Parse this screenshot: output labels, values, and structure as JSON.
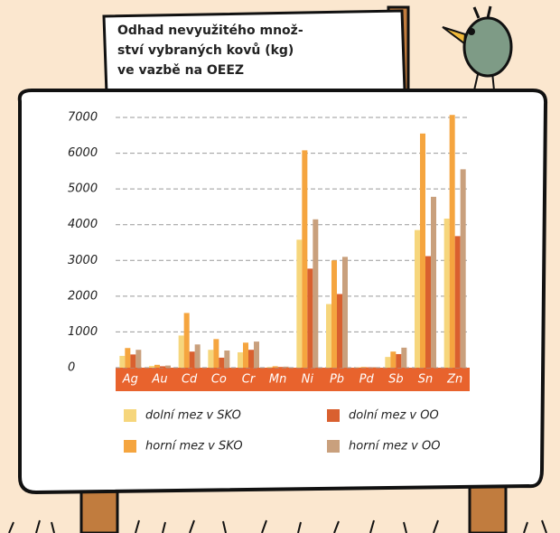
{
  "chart_data": {
    "type": "bar",
    "title": [
      "Odhad nevyužitého množ-",
      "ství vybraných kovů (kg)",
      "ve vazbě na OEEZ"
    ],
    "categories": [
      "Ag",
      "Au",
      "Cd",
      "Co",
      "Cr",
      "Mn",
      "Ni",
      "Pb",
      "Pd",
      "Sb",
      "Sn",
      "Zn"
    ],
    "series": [
      {
        "name": "dolní mez v SKO",
        "color": "#f6d67c",
        "values": [
          330,
          50,
          900,
          500,
          430,
          20,
          3580,
          1780,
          10,
          300,
          3850,
          4170
        ]
      },
      {
        "name": "horní mez v SKO",
        "color": "#f5a53f",
        "values": [
          550,
          80,
          1530,
          800,
          700,
          40,
          6080,
          3000,
          20,
          450,
          6550,
          7070
        ]
      },
      {
        "name": "dolní mez v OO",
        "color": "#d9602f",
        "values": [
          370,
          40,
          450,
          280,
          500,
          20,
          2770,
          2060,
          10,
          380,
          3120,
          3680
        ]
      },
      {
        "name": "horní mez v OO",
        "color": "#c9a07d",
        "values": [
          500,
          60,
          650,
          480,
          730,
          30,
          4150,
          3100,
          15,
          560,
          4780,
          5550
        ]
      }
    ],
    "ylim": [
      0,
      7000
    ],
    "yticks": [
      0,
      1000,
      2000,
      3000,
      4000,
      5000,
      6000,
      7000
    ],
    "grid": true
  }
}
